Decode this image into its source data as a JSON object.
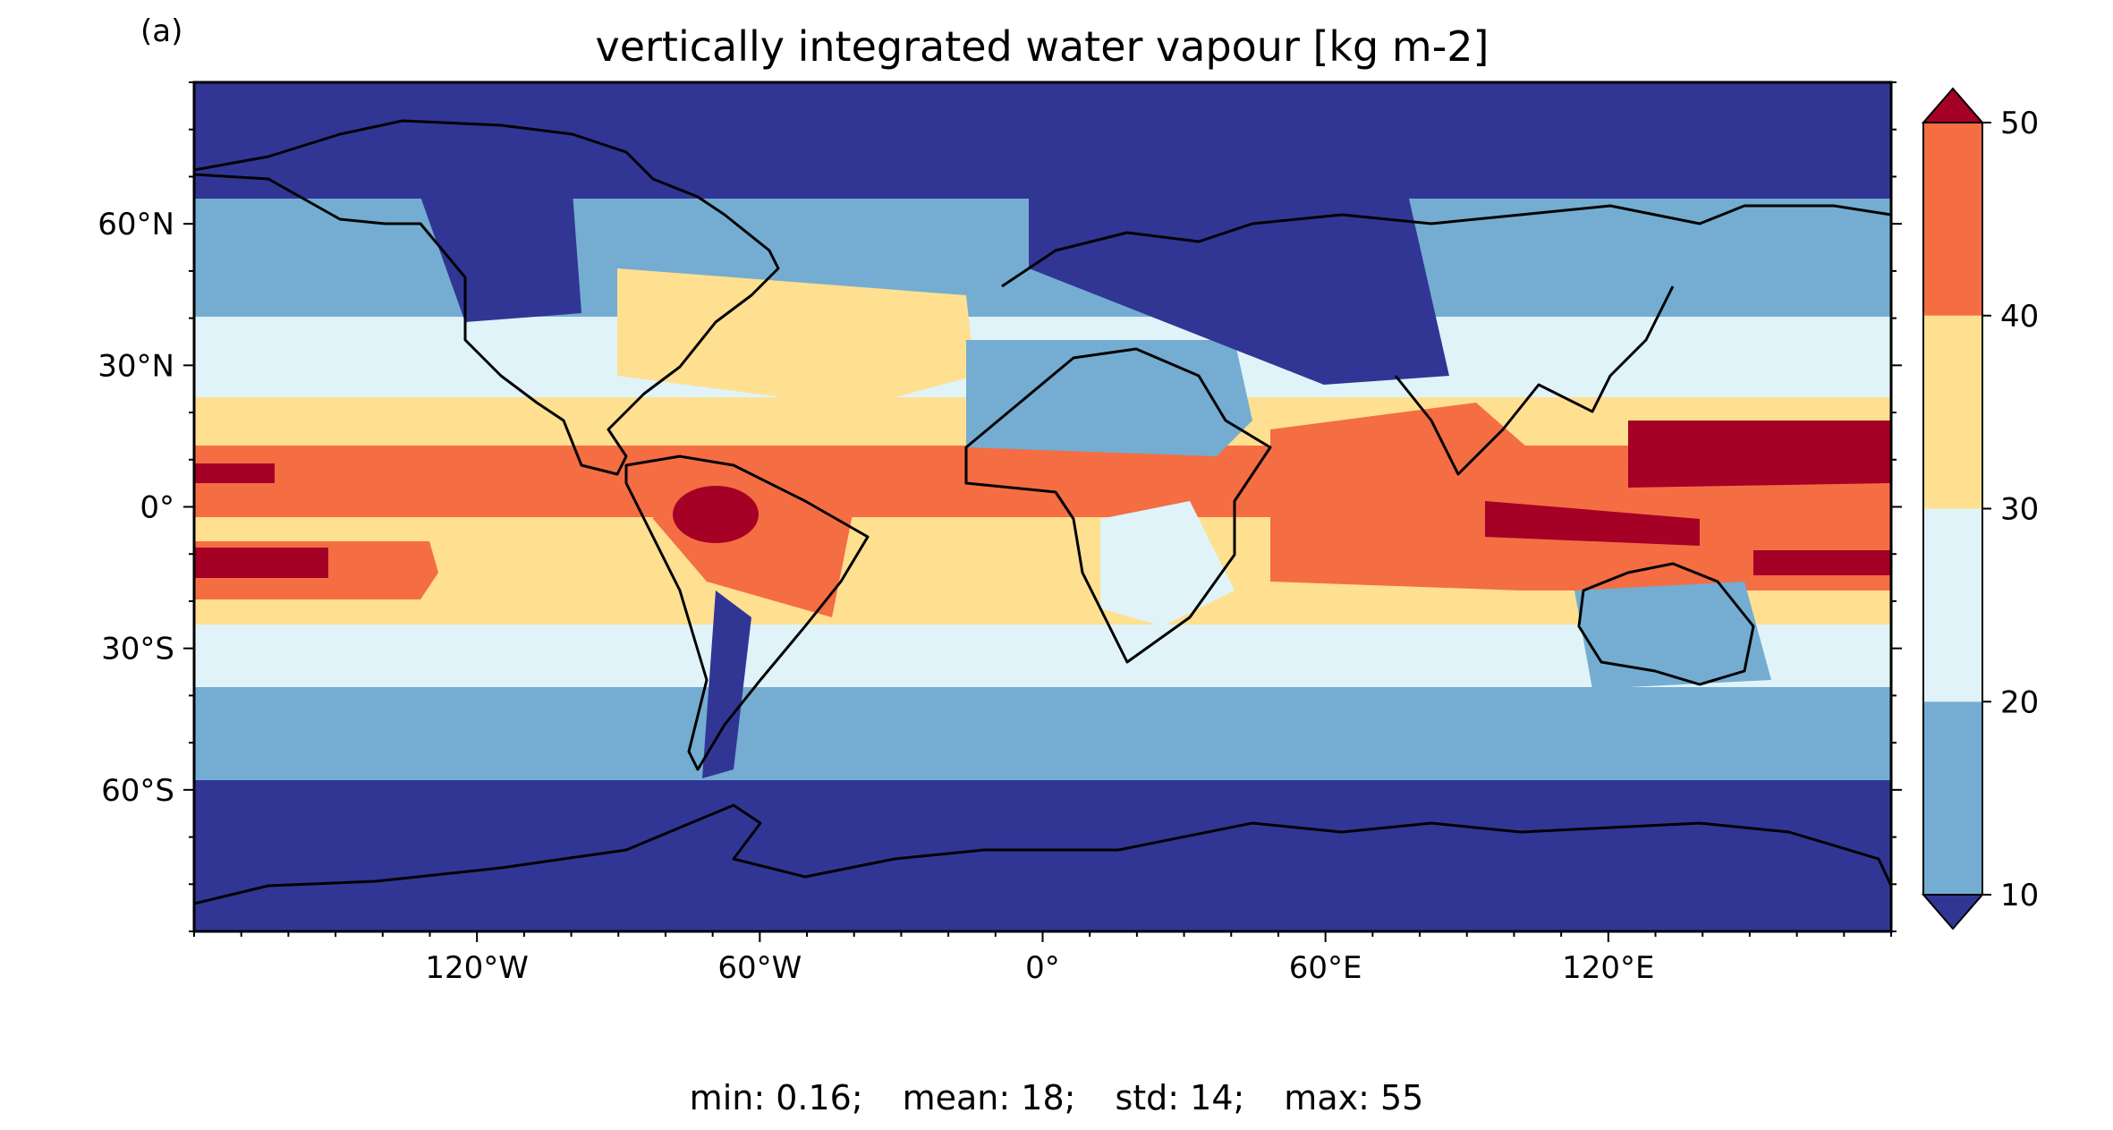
{
  "panel_label": "(a)",
  "title": "vertically integrated water vapour [kg m-2]",
  "map": {
    "projection": "equirectangular",
    "lon_range": [
      -180,
      180
    ],
    "lat_range": [
      -90,
      90
    ],
    "x_ticks": [
      {
        "lon": -120,
        "label": "120°W"
      },
      {
        "lon": -60,
        "label": "60°W"
      },
      {
        "lon": 0,
        "label": "0°"
      },
      {
        "lon": 60,
        "label": "60°E"
      },
      {
        "lon": 120,
        "label": "120°E"
      }
    ],
    "y_ticks": [
      {
        "lat": 60,
        "label": "60°N"
      },
      {
        "lat": 30,
        "label": "30°N"
      },
      {
        "lat": 0,
        "label": "0°"
      },
      {
        "lat": -30,
        "label": "30°S"
      },
      {
        "lat": -60,
        "label": "60°S"
      }
    ],
    "coastlines": true
  },
  "colorbar": {
    "ticks": [
      10,
      20,
      30,
      40,
      50
    ],
    "levels": [
      {
        "range": "<10",
        "color": "#313695"
      },
      {
        "range": "10-20",
        "color": "#74add1"
      },
      {
        "range": "20-30",
        "color": "#e0f3f8"
      },
      {
        "range": "30-40",
        "color": "#fee090"
      },
      {
        "range": "40-50",
        "color": "#f46d43"
      },
      {
        "range": ">50",
        "color": "#a50026"
      }
    ],
    "extend": "both"
  },
  "stats": {
    "min": "min: 0.16;",
    "mean": "mean: 18;",
    "std": "std: 14;",
    "max": "max: 55"
  }
}
